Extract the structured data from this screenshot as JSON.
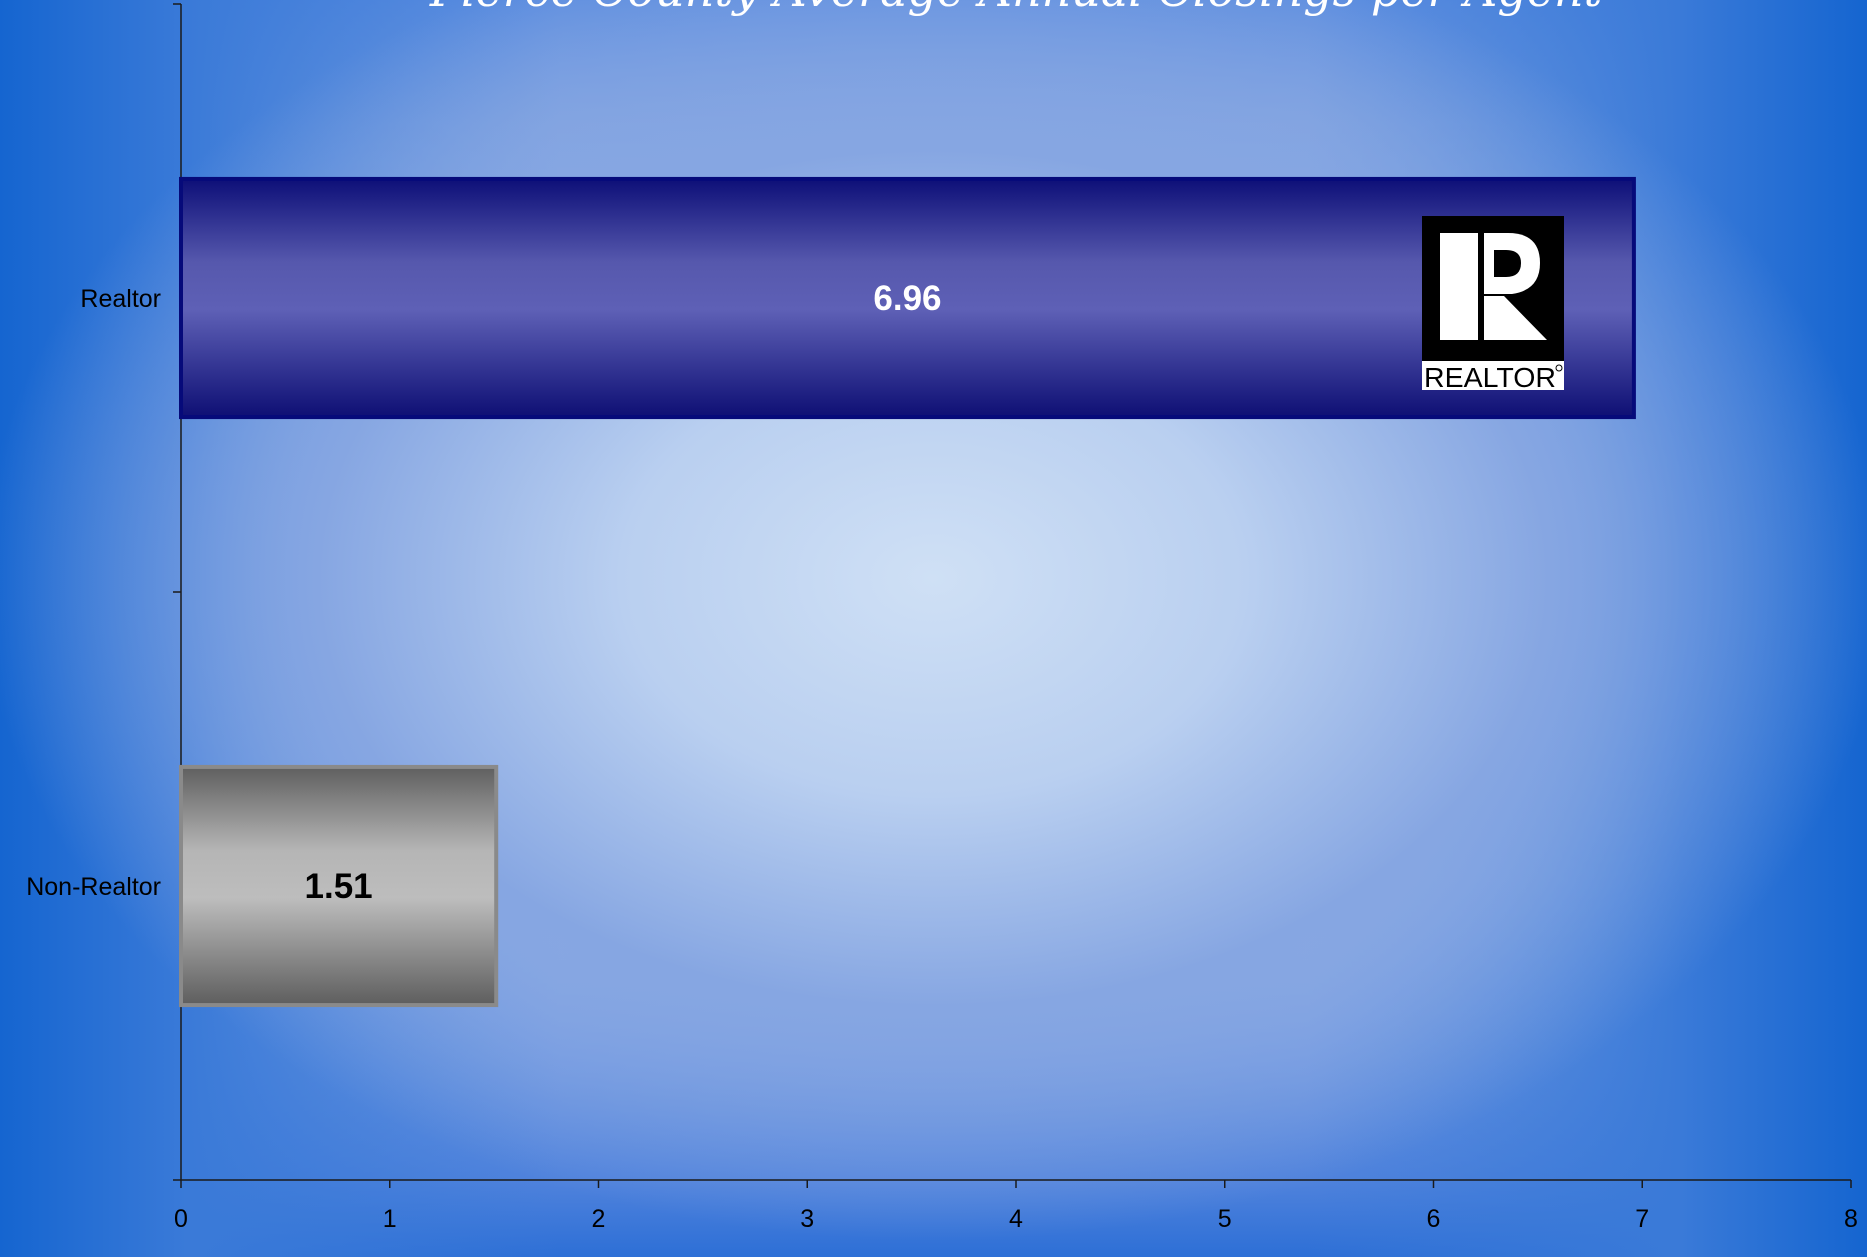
{
  "chart_data": {
    "type": "bar",
    "orientation": "horizontal",
    "title": "Pierce County Average Annual Closings per Agent",
    "categories": [
      "Realtor",
      "Non-Realtor"
    ],
    "values": [
      6.96,
      1.51
    ],
    "data_labels": [
      "6.96",
      "1.51"
    ],
    "bar_colors": [
      "#5b5db3",
      "#bcbcbc"
    ],
    "xlim": [
      0,
      8
    ],
    "x_ticks": [
      "0",
      "1",
      "2",
      "3",
      "4",
      "5",
      "6",
      "7",
      "8"
    ],
    "grid": false,
    "legend": "none"
  },
  "logo": {
    "name": "realtor-logo",
    "text": "REALTOR"
  }
}
